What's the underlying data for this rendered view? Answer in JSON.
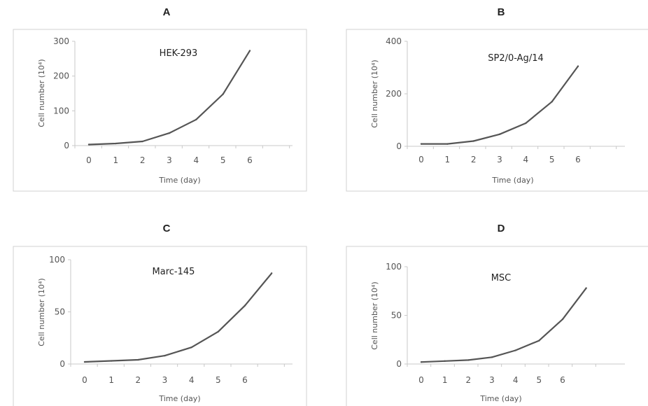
{
  "chart_data": [
    {
      "panel": "A",
      "type": "line",
      "inline_label": "HEK-293",
      "xlabel": "Time (day)",
      "ylabel": "Cell number (10⁴)",
      "x": [
        0,
        1,
        2,
        3,
        4,
        5,
        6
      ],
      "x_ticks": [
        "0",
        "1",
        "2",
        "3",
        "4",
        "5",
        "6"
      ],
      "y_ticks": [
        "0",
        "100",
        "200",
        "300"
      ],
      "ylim": [
        0,
        300
      ],
      "values": [
        3,
        6,
        12,
        36,
        75,
        148,
        273
      ],
      "line_color": "#555555"
    },
    {
      "panel": "B",
      "type": "line",
      "inline_label": "SP2/0-Ag/14",
      "xlabel": "Time (day)",
      "ylabel": "Cell number (10⁴)",
      "x": [
        0,
        1,
        2,
        3,
        4,
        5,
        6
      ],
      "x_ticks": [
        "0",
        "1",
        "2",
        "3",
        "4",
        "5",
        "6"
      ],
      "y_ticks": [
        "0",
        "200",
        "400"
      ],
      "ylim": [
        0,
        400
      ],
      "values": [
        9,
        9,
        20,
        46,
        88,
        170,
        305
      ],
      "line_color": "#555555"
    },
    {
      "panel": "C",
      "type": "line",
      "inline_label": "Marc-145",
      "xlabel": "Time (day)",
      "ylabel": "Cell number (10⁴)",
      "x": [
        0,
        1,
        2,
        3,
        4,
        5,
        6,
        7
      ],
      "x_ticks": [
        "0",
        "1",
        "2",
        "3",
        "4",
        "5",
        "6"
      ],
      "y_ticks": [
        "0",
        "50",
        "100"
      ],
      "ylim": [
        0,
        100
      ],
      "values": [
        2,
        3,
        4,
        8,
        16,
        31,
        56,
        87
      ],
      "line_color": "#555555"
    },
    {
      "panel": "D",
      "type": "line",
      "inline_label": "MSC",
      "xlabel": "Time (day)",
      "ylabel": "Cell number (10⁴)",
      "x": [
        0,
        1,
        2,
        3,
        4,
        5,
        6,
        7
      ],
      "x_ticks": [
        "0",
        "1",
        "2",
        "3",
        "4",
        "5",
        "6"
      ],
      "y_ticks": [
        "0",
        "50",
        "100"
      ],
      "ylim": [
        0,
        100
      ],
      "values": [
        2,
        3,
        4,
        7,
        14,
        24,
        46,
        78
      ],
      "line_color": "#555555"
    }
  ]
}
